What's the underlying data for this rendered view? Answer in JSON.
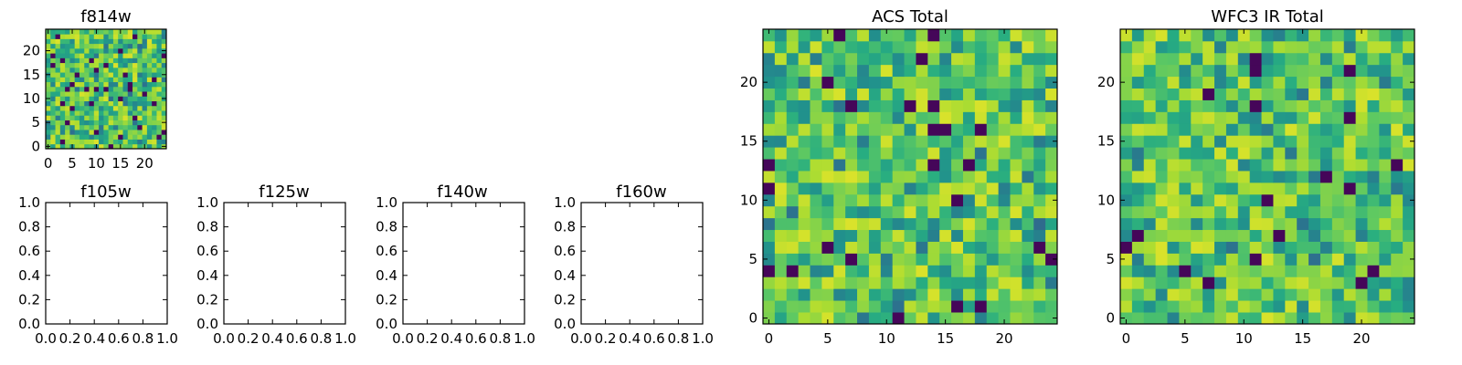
{
  "colormap": "viridis",
  "chart_data": [
    {
      "type": "heatmap",
      "title": "f814w",
      "grid_size": 25,
      "xlim": [
        -0.5,
        24.5
      ],
      "ylim": [
        -0.5,
        24.5
      ],
      "xticks": [
        0,
        5,
        10,
        15,
        20
      ],
      "yticks": [
        0,
        5,
        10,
        15,
        20
      ],
      "pattern": "random_noise",
      "seed": 814
    },
    {
      "type": "empty",
      "title": "f105w",
      "xlim": [
        0,
        1
      ],
      "ylim": [
        0,
        1
      ],
      "xticks": [
        "0.0",
        "0.2",
        "0.4",
        "0.6",
        "0.8",
        "1.0"
      ],
      "yticks": [
        "0.0",
        "0.2",
        "0.4",
        "0.6",
        "0.8",
        "1.0"
      ]
    },
    {
      "type": "empty",
      "title": "f125w",
      "xlim": [
        0,
        1
      ],
      "ylim": [
        0,
        1
      ],
      "xticks": [
        "0.0",
        "0.2",
        "0.4",
        "0.6",
        "0.8",
        "1.0"
      ],
      "yticks": [
        "0.0",
        "0.2",
        "0.4",
        "0.6",
        "0.8",
        "1.0"
      ]
    },
    {
      "type": "empty",
      "title": "f140w",
      "xlim": [
        0,
        1
      ],
      "ylim": [
        0,
        1
      ],
      "xticks": [
        "0.0",
        "0.2",
        "0.4",
        "0.6",
        "0.8",
        "1.0"
      ],
      "yticks": [
        "0.0",
        "0.2",
        "0.4",
        "0.6",
        "0.8",
        "1.0"
      ]
    },
    {
      "type": "empty",
      "title": "f160w",
      "xlim": [
        0,
        1
      ],
      "ylim": [
        0,
        1
      ],
      "xticks": [
        "0.0",
        "0.2",
        "0.4",
        "0.6",
        "0.8",
        "1.0"
      ],
      "yticks": [
        "0.0",
        "0.2",
        "0.4",
        "0.6",
        "0.8",
        "1.0"
      ]
    },
    {
      "type": "heatmap",
      "title": "ACS Total",
      "grid_size": 25,
      "xlim": [
        -0.5,
        24.5
      ],
      "ylim": [
        -0.5,
        24.5
      ],
      "xticks": [
        0,
        5,
        10,
        15,
        20
      ],
      "yticks": [
        0,
        5,
        10,
        15,
        20
      ],
      "pattern": "random_noise",
      "seed": 1001
    },
    {
      "type": "heatmap",
      "title": "WFC3 IR Total",
      "grid_size": 25,
      "xlim": [
        -0.5,
        24.5
      ],
      "ylim": [
        -0.5,
        24.5
      ],
      "xticks": [
        0,
        5,
        10,
        15,
        20
      ],
      "yticks": [
        0,
        5,
        10,
        15,
        20
      ],
      "pattern": "random_noise",
      "seed": 3160
    }
  ]
}
